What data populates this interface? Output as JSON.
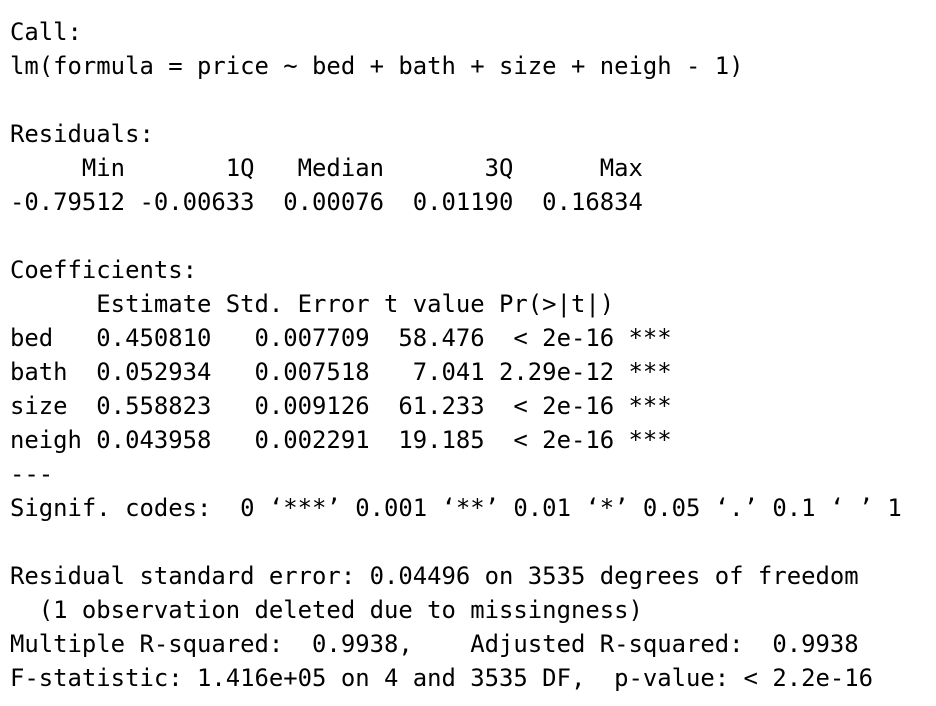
{
  "output": {
    "call_heading": "Call:",
    "call_formula": "lm(formula = price ~ bed + bath + size + neigh - 1)",
    "residuals_heading": "Residuals:",
    "residuals_header": "     Min       1Q   Median       3Q      Max ",
    "residuals_values": "-0.79512 -0.00633  0.00076  0.01190  0.16834 ",
    "coefficients_heading": "Coefficients:",
    "coef_header": "      Estimate Std. Error t value Pr(>|t|)    ",
    "coef_rows": [
      "bed   0.450810   0.007709  58.476  < 2e-16 ***",
      "bath  0.052934   0.007518   7.041 2.29e-12 ***",
      "size  0.558823   0.009126  61.233  < 2e-16 ***",
      "neigh 0.043958   0.002291  19.185  < 2e-16 ***"
    ],
    "separator": "---",
    "signif_codes": "Signif. codes:  0 ‘***’ 0.001 ‘**’ 0.01 ‘*’ 0.05 ‘.’ 0.1 ‘ ’ 1",
    "residual_se": "Residual standard error: 0.04496 on 3535 degrees of freedom",
    "missingness": "  (1 observation deleted due to missingness)",
    "r_squared": "Multiple R-squared:  0.9938,\tAdjusted R-squared:  0.9938 ",
    "f_statistic": "F-statistic: 1.416e+05 on 4 and 3535 DF,  p-value: < 2.2e-16"
  }
}
